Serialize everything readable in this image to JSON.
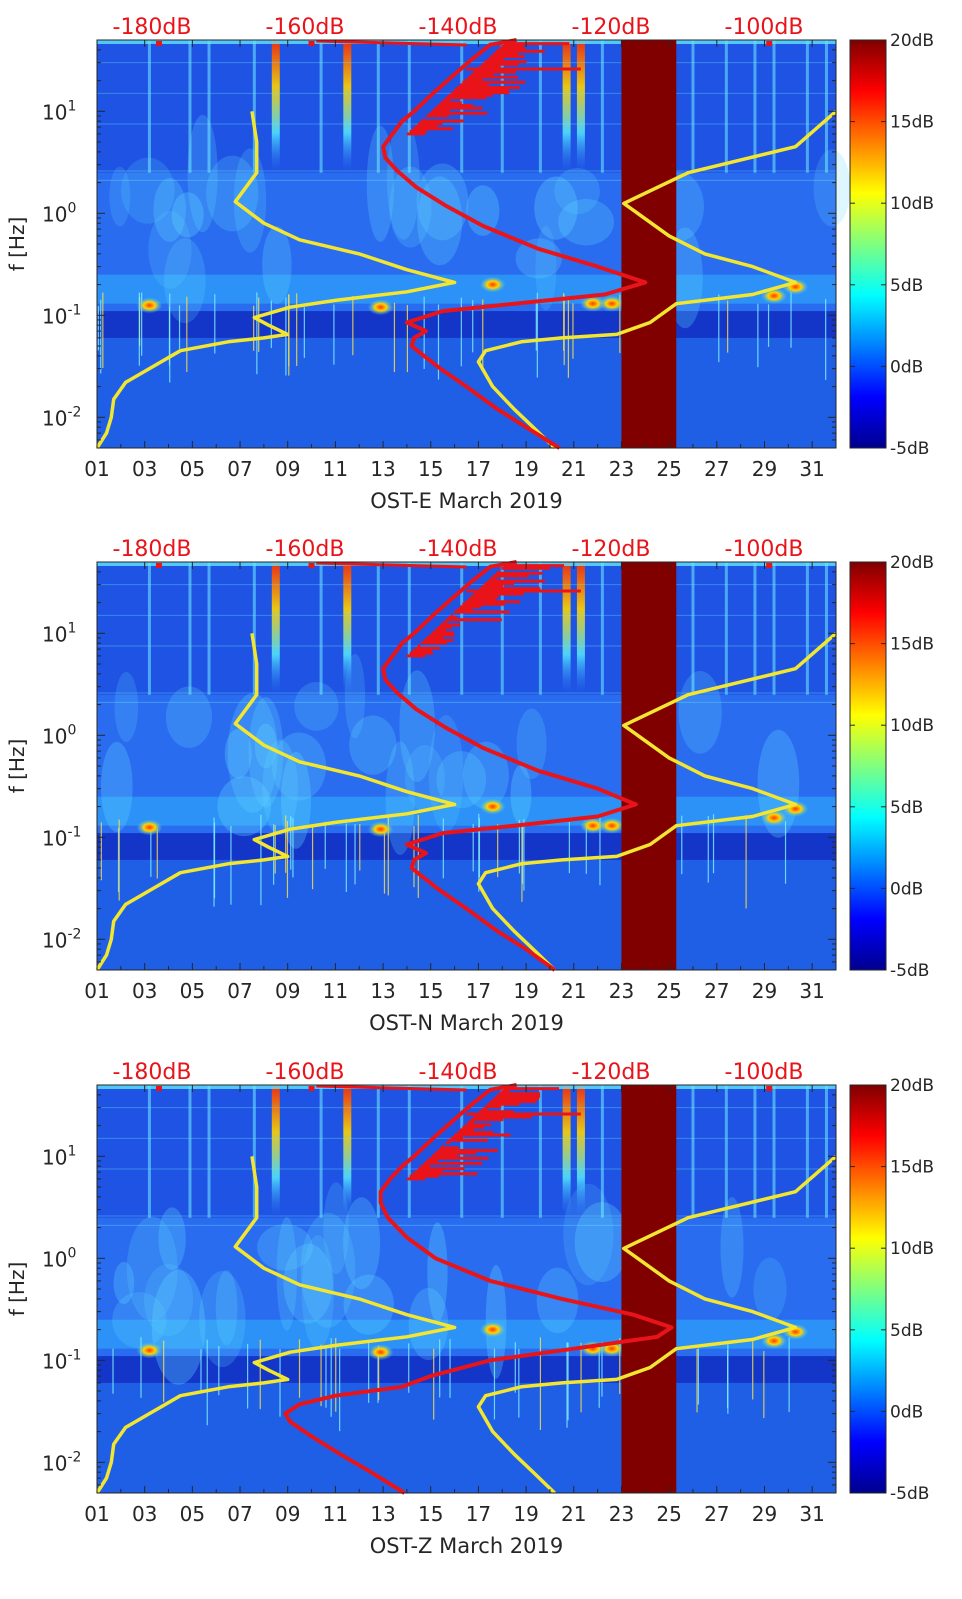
{
  "colors": {
    "jet_low": "#00008f",
    "background_blue": "#2a6cf0",
    "gap_fill": "#800000",
    "model_line": "#f2e630",
    "spectrum_line": "#e8141a",
    "top_axis_text": "#e8141a"
  },
  "colorbar": {
    "ticks": [
      "20dB",
      "15dB",
      "10dB",
      "5dB",
      "0dB",
      "-5dB"
    ],
    "range_db": [
      -5,
      20
    ]
  },
  "chart_data": [
    {
      "type": "heatmap",
      "title": "OST-E March 2019",
      "xlabel": "OST-E March 2019",
      "ylabel": "f [Hz]",
      "yscale": "log",
      "ylim": [
        0.005,
        50
      ],
      "xlim": [
        1,
        32
      ],
      "x_ticks": [
        "01",
        "03",
        "05",
        "07",
        "09",
        "11",
        "13",
        "15",
        "17",
        "19",
        "21",
        "23",
        "25",
        "27",
        "29",
        "31"
      ],
      "y_ticks": [
        {
          "value": 0.01,
          "base": "10",
          "exp": "-2"
        },
        {
          "value": 0.1,
          "base": "10",
          "exp": "-1"
        },
        {
          "value": 1,
          "base": "10",
          "exp": "0"
        },
        {
          "value": 10,
          "base": "10",
          "exp": "1"
        }
      ],
      "top_axis_ticks": [
        "-180dB",
        "-160dB",
        "-140dB",
        "-120dB",
        "-100dB"
      ],
      "data_gap_days": [
        23,
        25.3
      ],
      "series": [
        {
          "name": "model_curve",
          "points": [
            [
              1,
              0.005
            ],
            [
              1.4,
              0.007
            ],
            [
              1.6,
              0.01
            ],
            [
              1.7,
              0.015
            ],
            [
              2.2,
              0.022
            ],
            [
              3.2,
              0.03
            ],
            [
              4.5,
              0.045
            ],
            [
              6.5,
              0.055
            ],
            [
              8.0,
              0.06
            ],
            [
              9.0,
              0.065
            ],
            [
              8.2,
              0.08
            ],
            [
              7.6,
              0.095
            ],
            [
              9.1,
              0.12
            ],
            [
              11,
              0.14
            ],
            [
              14,
              0.17
            ],
            [
              16,
              0.21
            ],
            [
              14,
              0.28
            ],
            [
              12,
              0.4
            ],
            [
              9.5,
              0.55
            ],
            [
              8,
              0.8
            ],
            [
              6.8,
              1.3
            ],
            [
              7.7,
              2.5
            ],
            [
              7.7,
              5
            ],
            [
              7.5,
              10
            ]
          ]
        },
        {
          "name": "model_curve_2",
          "points": [
            [
              20.2,
              0.005
            ],
            [
              19.3,
              0.008
            ],
            [
              18.5,
              0.012
            ],
            [
              17.6,
              0.02
            ],
            [
              17.0,
              0.035
            ],
            [
              17.3,
              0.045
            ],
            [
              18.8,
              0.055
            ],
            [
              20.5,
              0.06
            ],
            [
              22.8,
              0.065
            ],
            [
              24.2,
              0.085
            ],
            [
              25.3,
              0.13
            ],
            [
              28.5,
              0.16
            ],
            [
              30.3,
              0.21
            ],
            [
              28.5,
              0.3
            ],
            [
              26.5,
              0.4
            ],
            [
              25,
              0.6
            ],
            [
              23.1,
              1.25
            ],
            [
              25.8,
              2.5
            ],
            [
              30.3,
              4.5
            ],
            [
              32,
              10
            ]
          ]
        },
        {
          "name": "spectrum_curve",
          "points": [
            [
              20.4,
              0.005
            ],
            [
              19.0,
              0.008
            ],
            [
              17.8,
              0.012
            ],
            [
              16.5,
              0.02
            ],
            [
              15.4,
              0.03
            ],
            [
              14.6,
              0.042
            ],
            [
              14.2,
              0.05
            ],
            [
              14.3,
              0.06
            ],
            [
              14.8,
              0.07
            ],
            [
              14.0,
              0.085
            ],
            [
              15.5,
              0.11
            ],
            [
              18.5,
              0.13
            ],
            [
              22.3,
              0.16
            ],
            [
              24.0,
              0.21
            ],
            [
              22.0,
              0.3
            ],
            [
              19.5,
              0.45
            ],
            [
              17.2,
              0.75
            ],
            [
              15.6,
              1.2
            ],
            [
              14.4,
              1.8
            ],
            [
              13.6,
              2.6
            ],
            [
              13.1,
              3.5
            ],
            [
              13.0,
              4.5
            ],
            [
              13.4,
              6
            ],
            [
              13.8,
              8
            ],
            [
              14.3,
              10
            ],
            [
              15.1,
              15
            ],
            [
              15.9,
              22
            ],
            [
              16.7,
              32
            ],
            [
              17.5,
              45
            ],
            [
              18.6,
              50
            ]
          ]
        }
      ]
    },
    {
      "type": "heatmap",
      "title": "OST-N March 2019",
      "xlabel": "OST-N March 2019",
      "ylabel": "f [Hz]",
      "yscale": "log",
      "ylim": [
        0.005,
        50
      ],
      "xlim": [
        1,
        32
      ],
      "x_ticks": [
        "01",
        "03",
        "05",
        "07",
        "09",
        "11",
        "13",
        "15",
        "17",
        "19",
        "21",
        "23",
        "25",
        "27",
        "29",
        "31"
      ],
      "y_ticks": [
        {
          "value": 0.01,
          "base": "10",
          "exp": "-2"
        },
        {
          "value": 0.1,
          "base": "10",
          "exp": "-1"
        },
        {
          "value": 1,
          "base": "10",
          "exp": "0"
        },
        {
          "value": 10,
          "base": "10",
          "exp": "1"
        }
      ],
      "top_axis_ticks": [
        "-180dB",
        "-160dB",
        "-140dB",
        "-120dB",
        "-100dB"
      ],
      "data_gap_days": [
        23,
        25.3
      ],
      "series": [
        {
          "name": "model_curve",
          "points": [
            [
              1,
              0.005
            ],
            [
              1.4,
              0.007
            ],
            [
              1.6,
              0.01
            ],
            [
              1.7,
              0.015
            ],
            [
              2.2,
              0.022
            ],
            [
              3.2,
              0.03
            ],
            [
              4.5,
              0.045
            ],
            [
              6.5,
              0.055
            ],
            [
              8.0,
              0.06
            ],
            [
              9.0,
              0.065
            ],
            [
              8.2,
              0.08
            ],
            [
              7.6,
              0.095
            ],
            [
              9.1,
              0.12
            ],
            [
              11,
              0.14
            ],
            [
              14,
              0.17
            ],
            [
              16,
              0.21
            ],
            [
              14,
              0.28
            ],
            [
              12,
              0.4
            ],
            [
              9.5,
              0.55
            ],
            [
              8,
              0.8
            ],
            [
              6.8,
              1.3
            ],
            [
              7.7,
              2.5
            ],
            [
              7.7,
              5
            ],
            [
              7.5,
              10
            ]
          ]
        },
        {
          "name": "model_curve_2",
          "points": [
            [
              20.2,
              0.005
            ],
            [
              19.3,
              0.008
            ],
            [
              18.5,
              0.012
            ],
            [
              17.6,
              0.02
            ],
            [
              17.0,
              0.035
            ],
            [
              17.3,
              0.045
            ],
            [
              18.8,
              0.055
            ],
            [
              20.5,
              0.06
            ],
            [
              22.8,
              0.065
            ],
            [
              24.2,
              0.085
            ],
            [
              25.3,
              0.13
            ],
            [
              28.5,
              0.16
            ],
            [
              30.3,
              0.21
            ],
            [
              28.5,
              0.3
            ],
            [
              26.5,
              0.4
            ],
            [
              25,
              0.6
            ],
            [
              23.1,
              1.25
            ],
            [
              25.8,
              2.5
            ],
            [
              30.3,
              4.5
            ],
            [
              32,
              10
            ]
          ]
        },
        {
          "name": "spectrum_curve",
          "points": [
            [
              20.2,
              0.005
            ],
            [
              19.0,
              0.008
            ],
            [
              17.8,
              0.012
            ],
            [
              16.5,
              0.02
            ],
            [
              15.4,
              0.03
            ],
            [
              14.6,
              0.042
            ],
            [
              14.2,
              0.05
            ],
            [
              14.3,
              0.06
            ],
            [
              14.8,
              0.07
            ],
            [
              14.0,
              0.085
            ],
            [
              15.5,
              0.11
            ],
            [
              18.5,
              0.13
            ],
            [
              22.0,
              0.16
            ],
            [
              23.6,
              0.21
            ],
            [
              22.0,
              0.3
            ],
            [
              19.5,
              0.45
            ],
            [
              17.2,
              0.75
            ],
            [
              15.6,
              1.2
            ],
            [
              14.4,
              1.8
            ],
            [
              13.6,
              2.6
            ],
            [
              13.1,
              3.5
            ],
            [
              13.0,
              4.5
            ],
            [
              13.4,
              6
            ],
            [
              13.8,
              8
            ],
            [
              14.3,
              10
            ],
            [
              15.1,
              15
            ],
            [
              15.9,
              22
            ],
            [
              16.7,
              32
            ],
            [
              17.5,
              45
            ],
            [
              18.6,
              50
            ]
          ]
        }
      ]
    },
    {
      "type": "heatmap",
      "title": "OST-Z March 2019",
      "xlabel": "OST-Z March 2019",
      "ylabel": "f [Hz]",
      "yscale": "log",
      "ylim": [
        0.005,
        50
      ],
      "xlim": [
        1,
        32
      ],
      "x_ticks": [
        "01",
        "03",
        "05",
        "07",
        "09",
        "11",
        "13",
        "15",
        "17",
        "19",
        "21",
        "23",
        "25",
        "27",
        "29",
        "31"
      ],
      "y_ticks": [
        {
          "value": 0.01,
          "base": "10",
          "exp": "-2"
        },
        {
          "value": 0.1,
          "base": "10",
          "exp": "-1"
        },
        {
          "value": 1,
          "base": "10",
          "exp": "0"
        },
        {
          "value": 10,
          "base": "10",
          "exp": "1"
        }
      ],
      "top_axis_ticks": [
        "-180dB",
        "-160dB",
        "-140dB",
        "-120dB",
        "-100dB"
      ],
      "data_gap_days": [
        23,
        25.3
      ],
      "series": [
        {
          "name": "model_curve",
          "points": [
            [
              1,
              0.005
            ],
            [
              1.4,
              0.007
            ],
            [
              1.6,
              0.01
            ],
            [
              1.7,
              0.015
            ],
            [
              2.2,
              0.022
            ],
            [
              3.2,
              0.03
            ],
            [
              4.5,
              0.045
            ],
            [
              6.5,
              0.055
            ],
            [
              8.0,
              0.06
            ],
            [
              9.0,
              0.065
            ],
            [
              8.2,
              0.08
            ],
            [
              7.6,
              0.095
            ],
            [
              9.1,
              0.12
            ],
            [
              11,
              0.14
            ],
            [
              14,
              0.17
            ],
            [
              16,
              0.21
            ],
            [
              14,
              0.28
            ],
            [
              12,
              0.4
            ],
            [
              9.5,
              0.55
            ],
            [
              8,
              0.8
            ],
            [
              6.8,
              1.3
            ],
            [
              7.7,
              2.5
            ],
            [
              7.7,
              5
            ],
            [
              7.5,
              10
            ]
          ]
        },
        {
          "name": "model_curve_2",
          "points": [
            [
              20.2,
              0.005
            ],
            [
              19.3,
              0.008
            ],
            [
              18.5,
              0.012
            ],
            [
              17.6,
              0.02
            ],
            [
              17.0,
              0.035
            ],
            [
              17.3,
              0.045
            ],
            [
              18.8,
              0.055
            ],
            [
              20.5,
              0.06
            ],
            [
              22.8,
              0.065
            ],
            [
              24.2,
              0.085
            ],
            [
              25.3,
              0.13
            ],
            [
              28.5,
              0.16
            ],
            [
              30.3,
              0.21
            ],
            [
              28.5,
              0.3
            ],
            [
              26.5,
              0.4
            ],
            [
              25,
              0.6
            ],
            [
              23.1,
              1.25
            ],
            [
              25.8,
              2.5
            ],
            [
              30.3,
              4.5
            ],
            [
              32,
              10
            ]
          ]
        },
        {
          "name": "spectrum_curve",
          "points": [
            [
              13.9,
              0.005
            ],
            [
              12.5,
              0.008
            ],
            [
              11.2,
              0.012
            ],
            [
              10.0,
              0.018
            ],
            [
              9.1,
              0.025
            ],
            [
              8.9,
              0.03
            ],
            [
              9.5,
              0.037
            ],
            [
              11.0,
              0.045
            ],
            [
              13.8,
              0.055
            ],
            [
              15.0,
              0.07
            ],
            [
              17.5,
              0.1
            ],
            [
              21.0,
              0.13
            ],
            [
              24.5,
              0.17
            ],
            [
              25.1,
              0.21
            ],
            [
              23.5,
              0.28
            ],
            [
              20.5,
              0.4
            ],
            [
              17.5,
              0.6
            ],
            [
              15.2,
              1.0
            ],
            [
              14.0,
              1.6
            ],
            [
              13.2,
              2.5
            ],
            [
              12.9,
              3.5
            ],
            [
              12.9,
              4.5
            ],
            [
              13.3,
              6
            ],
            [
              13.8,
              8
            ],
            [
              14.3,
              10
            ],
            [
              15.1,
              15
            ],
            [
              15.9,
              22
            ],
            [
              16.7,
              32
            ],
            [
              17.5,
              45
            ],
            [
              18.6,
              50
            ]
          ]
        }
      ]
    }
  ]
}
